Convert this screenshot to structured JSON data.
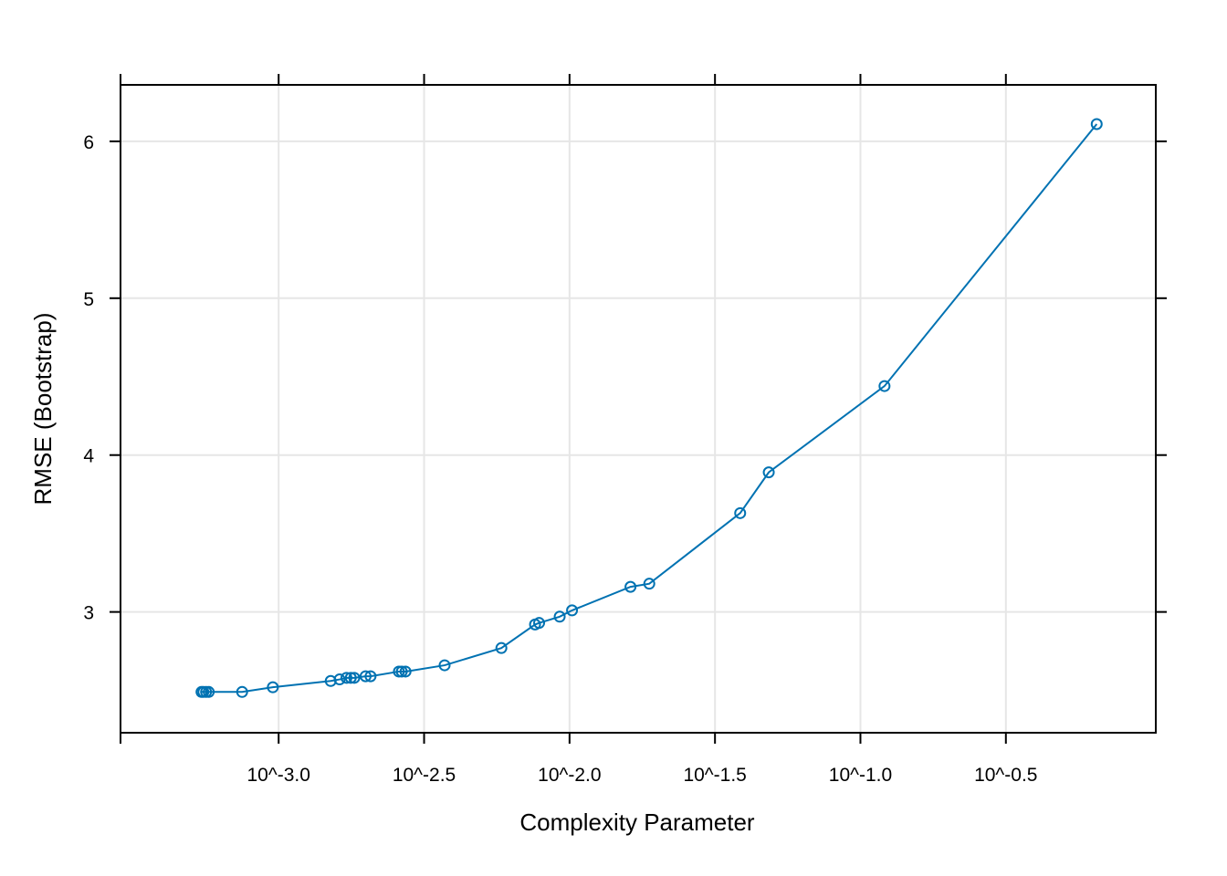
{
  "chart_data": {
    "type": "line",
    "title": "",
    "xlabel": "Complexity Parameter",
    "ylabel": "RMSE (Bootstrap)",
    "x_scale": "log10",
    "x_tick_values": [
      0.001,
      0.0031623,
      0.01,
      0.031623,
      0.1,
      0.31623
    ],
    "x_tick_labels": [
      "10^-3.0",
      "10^-2.5",
      "10^-2.0",
      "10^-1.5",
      "10^-1.0",
      "10^-0.5"
    ],
    "y_tick_values": [
      3,
      4,
      5,
      6
    ],
    "y_tick_labels": [
      "3",
      "4",
      "5",
      "6"
    ],
    "xlim": [
      0.000286,
      1.036
    ],
    "ylim": [
      2.23,
      6.36
    ],
    "grid": true,
    "legend": "none",
    "series_color": "#0072b2",
    "series": [
      {
        "x": [
          0.000543,
          0.000551,
          0.000563,
          0.000575,
          0.000749,
          0.000955,
          0.00151,
          0.00162,
          0.00171,
          0.00177,
          0.00182,
          0.00199,
          0.00207,
          0.00259,
          0.00265,
          0.00273,
          0.00372,
          0.00583,
          0.00761,
          0.00786,
          0.00925,
          0.0102,
          0.0162,
          0.0188,
          0.0386,
          0.0484,
          0.121,
          0.649
        ],
        "y": [
          2.49,
          2.49,
          2.49,
          2.49,
          2.49,
          2.52,
          2.56,
          2.57,
          2.58,
          2.58,
          2.58,
          2.59,
          2.59,
          2.62,
          2.62,
          2.62,
          2.66,
          2.77,
          2.92,
          2.93,
          2.97,
          3.01,
          3.16,
          3.18,
          3.63,
          3.89,
          4.44,
          6.11
        ]
      }
    ]
  }
}
